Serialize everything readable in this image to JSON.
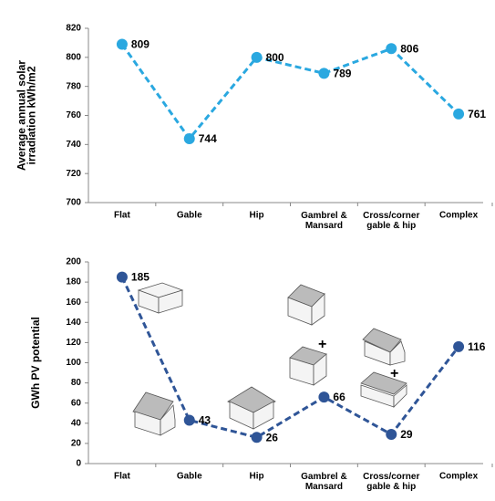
{
  "chart_data": [
    {
      "type": "line",
      "y_label": "Average annual solar\nirradiation kWh/m2",
      "categories": [
        "Flat",
        "Gable",
        "Hip",
        "Gambrel &\nMansard",
        "Cross/corner\ngable & hip",
        "Complex"
      ],
      "values": [
        809,
        744,
        800,
        789,
        806,
        761
      ],
      "color": "#2aa8e0",
      "ylim": [
        700,
        820
      ],
      "yticks": [
        700,
        720,
        740,
        760,
        780,
        800,
        820
      ],
      "grid": false
    },
    {
      "type": "line",
      "y_label": "GWh PV potential",
      "categories": [
        "Flat",
        "Gable",
        "Hip",
        "Gambrel &\nMansard",
        "Cross/corner\ngable & hip",
        "Complex"
      ],
      "values": [
        185,
        43,
        26,
        66,
        29,
        116
      ],
      "color": "#2f5597",
      "ylim": [
        0,
        200
      ],
      "yticks": [
        0,
        20,
        40,
        60,
        80,
        100,
        120,
        140,
        160,
        180,
        200
      ],
      "grid": false
    }
  ]
}
